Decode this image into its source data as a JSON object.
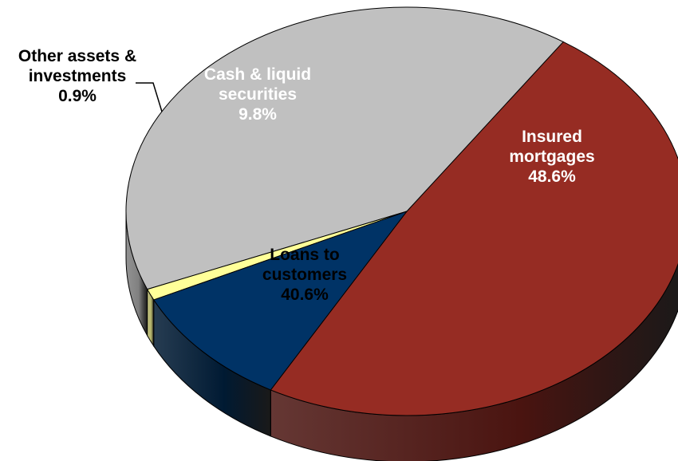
{
  "chart_data": {
    "type": "pie",
    "title": "",
    "style": "3d",
    "slices": [
      {
        "key": "mortgages",
        "label": [
          "Insured",
          "mortgages"
        ],
        "value_label": "48.6%",
        "value": 48.6,
        "color": "#962c23",
        "side_color": "#4a1410",
        "text_color": "#ffffff"
      },
      {
        "key": "loans",
        "label": [
          "Loans to",
          "customers"
        ],
        "value_label": "40.6%",
        "value": 40.6,
        "color": "#c0c0c0",
        "side_color": "#808080",
        "text_color": "#000000"
      },
      {
        "key": "other",
        "label": [
          "Other assets &",
          "investments"
        ],
        "value_label": "0.9%",
        "value": 0.9,
        "color": "#ffff99",
        "side_color": "#b3b36b",
        "text_color": "#000000"
      },
      {
        "key": "cash",
        "label": [
          "Cash & liquid",
          "securities"
        ],
        "value_label": "9.8%",
        "value": 9.8,
        "color": "#003366",
        "side_color": "#001a33",
        "text_color": "#ffffff"
      }
    ]
  }
}
